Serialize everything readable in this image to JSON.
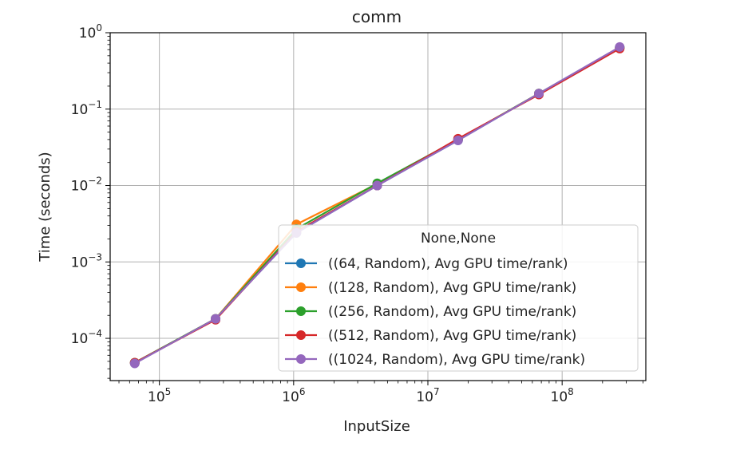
{
  "chart_data": {
    "type": "line",
    "title": "comm",
    "xlabel": "InputSize",
    "ylabel": "Time (seconds)",
    "xscale": "log",
    "yscale": "log",
    "xlim": [
      43000,
      420000000
    ],
    "ylim": [
      2.8e-05,
      1.0
    ],
    "grid": true,
    "x_ticks": [
      {
        "base": "10",
        "exp": "5",
        "value": 100000
      },
      {
        "base": "10",
        "exp": "6",
        "value": 1000000
      },
      {
        "base": "10",
        "exp": "7",
        "value": 10000000
      },
      {
        "base": "10",
        "exp": "8",
        "value": 100000000
      }
    ],
    "y_ticks": [
      {
        "base": "10",
        "exp": "−4",
        "value": 0.0001
      },
      {
        "base": "10",
        "exp": "−3",
        "value": 0.001
      },
      {
        "base": "10",
        "exp": "−2",
        "value": 0.01
      },
      {
        "base": "10",
        "exp": "−1",
        "value": 0.1
      },
      {
        "base": "10",
        "exp": "0",
        "value": 1
      }
    ],
    "legend": {
      "title": "None,None",
      "placement": "lower-right"
    },
    "x": [
      65536,
      262144,
      1048576,
      4194304,
      16777216,
      67108864,
      268435456
    ],
    "series": [
      {
        "name": "((64, Random), Avg GPU time/rank)",
        "color": "#1f77b4",
        "values": [
          4.8e-05,
          0.00018,
          0.0024,
          0.01,
          0.039,
          0.16,
          0.64
        ]
      },
      {
        "name": "((128, Random), Avg GPU time/rank)",
        "color": "#ff7f0e",
        "values": [
          4.8e-05,
          0.00018,
          0.0031,
          0.0105,
          0.04,
          0.16,
          0.63
        ]
      },
      {
        "name": "((256, Random), Avg GPU time/rank)",
        "color": "#2ca02c",
        "values": [
          4.8e-05,
          0.00018,
          0.0027,
          0.0107,
          0.04,
          0.16,
          0.64
        ]
      },
      {
        "name": "((512, Random), Avg GPU time/rank)",
        "color": "#d62728",
        "values": [
          4.8e-05,
          0.000175,
          0.0025,
          0.01,
          0.041,
          0.155,
          0.62
        ]
      },
      {
        "name": "((1024, Random), Avg GPU time/rank)",
        "color": "#9467bd",
        "values": [
          4.7e-05,
          0.00018,
          0.0024,
          0.01,
          0.039,
          0.16,
          0.65
        ]
      }
    ]
  }
}
